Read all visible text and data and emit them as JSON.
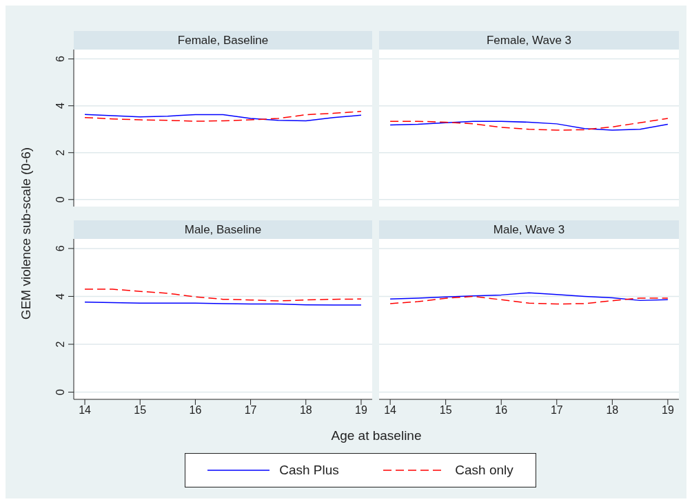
{
  "chart_data": [
    {
      "type": "line",
      "title": "Female, Baseline",
      "ylabel": "GEM violence sub-scale (0-6)",
      "x": [
        14,
        14.5,
        15,
        15.5,
        16,
        16.5,
        17,
        17.5,
        18,
        18.5,
        19
      ],
      "xlim": [
        13.8,
        19.2
      ],
      "ylim": [
        -0.3,
        6.4
      ],
      "yticks": [
        0,
        2,
        4,
        6
      ],
      "xticks": [
        14,
        15,
        16,
        17,
        18,
        19
      ],
      "tick_labels": "y",
      "grid": "y",
      "marker": "none",
      "legend": "bottom",
      "series": [
        {
          "name": "Cash Plus",
          "color": "#0000ff",
          "line_style": "solid",
          "values": [
            3.63,
            3.58,
            3.53,
            3.56,
            3.62,
            3.62,
            3.46,
            3.38,
            3.36,
            3.5,
            3.6
          ]
        },
        {
          "name": "Cash only",
          "color": "#ff0000",
          "line_style": "dashed",
          "values": [
            3.5,
            3.44,
            3.4,
            3.38,
            3.34,
            3.36,
            3.4,
            3.46,
            3.62,
            3.68,
            3.76
          ]
        }
      ]
    },
    {
      "type": "line",
      "title": "Female, Wave 3",
      "x": [
        14,
        14.5,
        15,
        15.5,
        16,
        16.5,
        17,
        17.5,
        18,
        18.5,
        19
      ],
      "xlim": [
        13.8,
        19.2
      ],
      "ylim": [
        -0.3,
        6.4
      ],
      "yticks": [
        0,
        2,
        4,
        6
      ],
      "xticks": [
        14,
        15,
        16,
        17,
        18,
        19
      ],
      "tick_labels": false,
      "grid": "y",
      "marker": "none",
      "series": [
        {
          "color": "#0000ff",
          "line_style": "solid",
          "values": [
            3.18,
            3.21,
            3.28,
            3.34,
            3.34,
            3.3,
            3.23,
            3.03,
            2.96,
            3.0,
            3.21
          ]
        },
        {
          "color": "#ff0000",
          "line_style": "dashed",
          "values": [
            3.34,
            3.34,
            3.3,
            3.23,
            3.08,
            3.0,
            2.96,
            2.98,
            3.1,
            3.28,
            3.46
          ]
        }
      ]
    },
    {
      "type": "line",
      "title": "Male, Baseline",
      "x": [
        14,
        14.5,
        15,
        15.5,
        16,
        16.5,
        17,
        17.5,
        18,
        18.5,
        19
      ],
      "xlim": [
        13.8,
        19.2
      ],
      "ylim": [
        -0.3,
        6.4
      ],
      "yticks": [
        0,
        2,
        4,
        6
      ],
      "xticks": [
        14,
        15,
        16,
        17,
        18,
        19
      ],
      "grid": "y",
      "marker": "none",
      "series": [
        {
          "color": "#0000ff",
          "line_style": "solid",
          "values": [
            3.76,
            3.74,
            3.72,
            3.72,
            3.72,
            3.7,
            3.68,
            3.68,
            3.65,
            3.64,
            3.64
          ]
        },
        {
          "color": "#ff0000",
          "line_style": "dashed",
          "values": [
            4.3,
            4.3,
            4.21,
            4.13,
            3.98,
            3.88,
            3.85,
            3.81,
            3.85,
            3.88,
            3.89
          ]
        }
      ]
    },
    {
      "type": "line",
      "title": "Male, Wave 3",
      "xlabel": "Age at baseline",
      "x": [
        14,
        14.5,
        15,
        15.5,
        16,
        16.5,
        17,
        17.5,
        18,
        18.5,
        19
      ],
      "xlim": [
        13.8,
        19.2
      ],
      "ylim": [
        -0.3,
        6.4
      ],
      "yticks": [
        0,
        2,
        4,
        6
      ],
      "xticks": [
        14,
        15,
        16,
        17,
        18,
        19
      ],
      "tick_labels": "x",
      "grid": "y",
      "marker": "none",
      "series": [
        {
          "color": "#0000ff",
          "line_style": "solid",
          "values": [
            3.89,
            3.93,
            3.98,
            4.02,
            4.06,
            4.15,
            4.08,
            4.0,
            3.94,
            3.83,
            3.86
          ]
        },
        {
          "color": "#ff0000",
          "line_style": "dashed",
          "values": [
            3.7,
            3.78,
            3.92,
            4.0,
            3.86,
            3.72,
            3.68,
            3.7,
            3.82,
            3.93,
            3.93
          ]
        }
      ]
    }
  ]
}
